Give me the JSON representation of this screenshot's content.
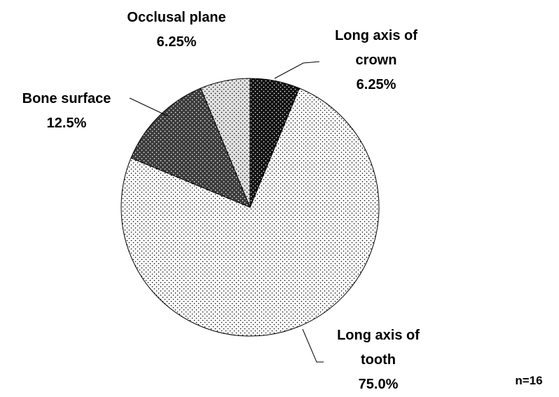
{
  "chart_data": {
    "type": "pie",
    "categories": [
      "Long axis of crown",
      "Long axis of tooth",
      "Bone surface",
      "Occlusal plane"
    ],
    "values": [
      6.25,
      75,
      12.5,
      6.25
    ],
    "value_labels": [
      "6.25%",
      "75.0%",
      "12.5%",
      "6.25%"
    ],
    "colors": [
      "#111111",
      "#ffffff",
      "#3a3a3a",
      "#e2e2e2"
    ],
    "note": "n=16"
  }
}
